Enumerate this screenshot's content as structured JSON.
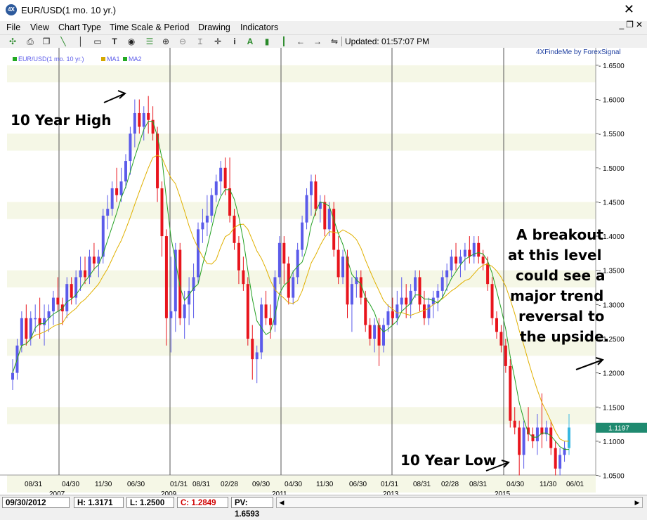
{
  "window": {
    "title": "EUR/USD(1 mo.  10 yr.)",
    "icon": "app-logo-icon"
  },
  "menu": [
    "File",
    "View",
    "Chart Type",
    "Time Scale & Period",
    "Drawing",
    "Indicators"
  ],
  "toolbar": {
    "icons": [
      "cursor-cross-icon",
      "print-icon",
      "copy-icon",
      "line-icon",
      "hline-icon",
      "text-icon",
      "circle-target-icon",
      "zoom-in-icon",
      "zoom-out-icon",
      "fit-icon",
      "info-icon",
      "font-icon",
      "bar-chart-icon",
      "candle-icon",
      "arrow-left-icon",
      "arrow-right-icon",
      "compress-icon"
    ],
    "updated": "Updated: 01:57:07 PM"
  },
  "statusbar": {
    "date": "09/30/2012",
    "high": "H: 1.3171",
    "low": "L: 1.2500",
    "close": "C: 1.2849",
    "pv": "PV: 1.6593"
  },
  "chart_data": {
    "type": "candlestick",
    "watermark": "4XFindeMe by ForexSignal",
    "legend": [
      {
        "name": "EUR/USD(1 mo.  10 yr.)",
        "color": "#22aa22"
      },
      {
        "name": "MA1",
        "color": "#d4a800"
      },
      {
        "name": "MA2",
        "color": "#22aa22"
      }
    ],
    "ylim": [
      1.03,
      1.655
    ],
    "y_ticks": [
      "1.6500",
      "1.6000",
      "1.5500",
      "1.5000",
      "1.4500",
      "1.4000",
      "1.3500",
      "1.3000",
      "1.2500",
      "1.2000",
      "1.1500",
      "1.1000",
      "1.0500"
    ],
    "x_tick_labels": [
      "08/31",
      "04/30",
      "11/30",
      "06/30",
      "01/31",
      "08/31",
      "02/28",
      "09/30",
      "04/30",
      "11/30",
      "06/30",
      "01/31",
      "08/31",
      "02/28",
      "08/31",
      "04/30",
      "11/30",
      "06/01"
    ],
    "year_labels": [
      "2007",
      "2009",
      "2011",
      "2013",
      "2015"
    ],
    "current_price": "1.1197",
    "colors": {
      "up": "#5b5bea",
      "down": "#e8141c",
      "ma1": "#e0b000",
      "ma2": "#22a022",
      "current": "#1f8a70",
      "band": "#f5f7e6"
    },
    "annotations": {
      "high": "10 Year High",
      "low": "10 Year Low",
      "note": [
        "A breakout",
        "at this  level",
        "could see a",
        "major trend",
        "reversal to",
        "the upside."
      ]
    },
    "candles": [
      [
        1.19,
        1.22,
        1.175,
        1.2
      ],
      [
        1.2,
        1.25,
        1.19,
        1.24
      ],
      [
        1.24,
        1.29,
        1.23,
        1.28
      ],
      [
        1.28,
        1.3,
        1.24,
        1.25
      ],
      [
        1.25,
        1.29,
        1.24,
        1.28
      ],
      [
        1.28,
        1.3,
        1.26,
        1.28
      ],
      [
        1.28,
        1.31,
        1.25,
        1.27
      ],
      [
        1.27,
        1.3,
        1.24,
        1.28
      ],
      [
        1.28,
        1.3,
        1.26,
        1.29
      ],
      [
        1.29,
        1.32,
        1.27,
        1.31
      ],
      [
        1.31,
        1.34,
        1.29,
        1.3
      ],
      [
        1.3,
        1.31,
        1.27,
        1.29
      ],
      [
        1.29,
        1.34,
        1.28,
        1.33
      ],
      [
        1.33,
        1.34,
        1.3,
        1.31
      ],
      [
        1.31,
        1.35,
        1.3,
        1.34
      ],
      [
        1.34,
        1.37,
        1.32,
        1.35
      ],
      [
        1.35,
        1.37,
        1.33,
        1.34
      ],
      [
        1.34,
        1.38,
        1.33,
        1.37
      ],
      [
        1.37,
        1.39,
        1.35,
        1.36
      ],
      [
        1.36,
        1.38,
        1.34,
        1.37
      ],
      [
        1.37,
        1.44,
        1.36,
        1.43
      ],
      [
        1.43,
        1.46,
        1.41,
        1.44
      ],
      [
        1.44,
        1.48,
        1.43,
        1.47
      ],
      [
        1.47,
        1.5,
        1.45,
        1.46
      ],
      [
        1.46,
        1.5,
        1.45,
        1.48
      ],
      [
        1.48,
        1.52,
        1.47,
        1.51
      ],
      [
        1.51,
        1.56,
        1.49,
        1.55
      ],
      [
        1.55,
        1.6,
        1.53,
        1.58
      ],
      [
        1.58,
        1.6,
        1.55,
        1.56
      ],
      [
        1.56,
        1.59,
        1.54,
        1.58
      ],
      [
        1.58,
        1.605,
        1.55,
        1.57
      ],
      [
        1.57,
        1.59,
        1.54,
        1.55
      ],
      [
        1.55,
        1.56,
        1.45,
        1.47
      ],
      [
        1.47,
        1.48,
        1.37,
        1.4
      ],
      [
        1.4,
        1.41,
        1.24,
        1.28
      ],
      [
        1.28,
        1.37,
        1.23,
        1.29
      ],
      [
        1.29,
        1.39,
        1.26,
        1.38
      ],
      [
        1.38,
        1.39,
        1.27,
        1.28
      ],
      [
        1.28,
        1.32,
        1.25,
        1.3
      ],
      [
        1.3,
        1.34,
        1.27,
        1.32
      ],
      [
        1.32,
        1.36,
        1.28,
        1.34
      ],
      [
        1.34,
        1.42,
        1.33,
        1.41
      ],
      [
        1.41,
        1.44,
        1.39,
        1.42
      ],
      [
        1.42,
        1.46,
        1.4,
        1.43
      ],
      [
        1.43,
        1.47,
        1.42,
        1.46
      ],
      [
        1.46,
        1.49,
        1.45,
        1.48
      ],
      [
        1.48,
        1.51,
        1.46,
        1.5
      ],
      [
        1.5,
        1.515,
        1.46,
        1.47
      ],
      [
        1.47,
        1.515,
        1.42,
        1.43
      ],
      [
        1.43,
        1.44,
        1.38,
        1.39
      ],
      [
        1.39,
        1.4,
        1.33,
        1.35
      ],
      [
        1.35,
        1.37,
        1.32,
        1.33
      ],
      [
        1.33,
        1.34,
        1.24,
        1.25
      ],
      [
        1.25,
        1.27,
        1.19,
        1.22
      ],
      [
        1.22,
        1.24,
        1.185,
        1.23
      ],
      [
        1.23,
        1.31,
        1.22,
        1.3
      ],
      [
        1.3,
        1.32,
        1.27,
        1.28
      ],
      [
        1.28,
        1.3,
        1.25,
        1.27
      ],
      [
        1.27,
        1.35,
        1.26,
        1.34
      ],
      [
        1.34,
        1.4,
        1.33,
        1.39
      ],
      [
        1.39,
        1.4,
        1.33,
        1.36
      ],
      [
        1.36,
        1.37,
        1.3,
        1.31
      ],
      [
        1.31,
        1.35,
        1.3,
        1.34
      ],
      [
        1.34,
        1.39,
        1.33,
        1.38
      ],
      [
        1.38,
        1.43,
        1.37,
        1.42
      ],
      [
        1.42,
        1.47,
        1.41,
        1.46
      ],
      [
        1.46,
        1.49,
        1.43,
        1.48
      ],
      [
        1.48,
        1.49,
        1.43,
        1.44
      ],
      [
        1.44,
        1.46,
        1.42,
        1.45
      ],
      [
        1.45,
        1.46,
        1.4,
        1.41
      ],
      [
        1.41,
        1.45,
        1.4,
        1.44
      ],
      [
        1.44,
        1.45,
        1.37,
        1.38
      ],
      [
        1.38,
        1.4,
        1.33,
        1.34
      ],
      [
        1.34,
        1.38,
        1.33,
        1.37
      ],
      [
        1.37,
        1.38,
        1.28,
        1.3
      ],
      [
        1.3,
        1.34,
        1.26,
        1.33
      ],
      [
        1.33,
        1.35,
        1.31,
        1.34
      ],
      [
        1.34,
        1.35,
        1.3,
        1.31
      ],
      [
        1.31,
        1.32,
        1.26,
        1.27
      ],
      [
        1.27,
        1.28,
        1.24,
        1.25
      ],
      [
        1.25,
        1.28,
        1.23,
        1.27
      ],
      [
        1.27,
        1.28,
        1.21,
        1.24
      ],
      [
        1.24,
        1.28,
        1.23,
        1.27
      ],
      [
        1.27,
        1.3,
        1.26,
        1.29
      ],
      [
        1.29,
        1.31,
        1.27,
        1.28
      ],
      [
        1.28,
        1.32,
        1.27,
        1.3
      ],
      [
        1.3,
        1.34,
        1.29,
        1.31
      ],
      [
        1.31,
        1.33,
        1.28,
        1.3
      ],
      [
        1.3,
        1.33,
        1.28,
        1.32
      ],
      [
        1.32,
        1.35,
        1.31,
        1.34
      ],
      [
        1.34,
        1.35,
        1.29,
        1.3
      ],
      [
        1.3,
        1.32,
        1.27,
        1.28
      ],
      [
        1.28,
        1.31,
        1.27,
        1.3
      ],
      [
        1.3,
        1.32,
        1.28,
        1.31
      ],
      [
        1.31,
        1.33,
        1.29,
        1.32
      ],
      [
        1.32,
        1.35,
        1.31,
        1.34
      ],
      [
        1.34,
        1.36,
        1.32,
        1.35
      ],
      [
        1.35,
        1.38,
        1.34,
        1.37
      ],
      [
        1.37,
        1.39,
        1.35,
        1.36
      ],
      [
        1.36,
        1.38,
        1.34,
        1.37
      ],
      [
        1.37,
        1.39,
        1.35,
        1.38
      ],
      [
        1.38,
        1.4,
        1.36,
        1.37
      ],
      [
        1.37,
        1.4,
        1.36,
        1.39
      ],
      [
        1.39,
        1.4,
        1.36,
        1.37
      ],
      [
        1.37,
        1.38,
        1.35,
        1.36
      ],
      [
        1.36,
        1.37,
        1.32,
        1.33
      ],
      [
        1.33,
        1.34,
        1.27,
        1.28
      ],
      [
        1.28,
        1.29,
        1.25,
        1.26
      ],
      [
        1.26,
        1.27,
        1.23,
        1.24
      ],
      [
        1.24,
        1.25,
        1.2,
        1.21
      ],
      [
        1.21,
        1.22,
        1.12,
        1.13
      ],
      [
        1.13,
        1.15,
        1.11,
        1.12
      ],
      [
        1.12,
        1.13,
        1.05,
        1.08
      ],
      [
        1.08,
        1.13,
        1.06,
        1.12
      ],
      [
        1.12,
        1.15,
        1.1,
        1.11
      ],
      [
        1.11,
        1.12,
        1.09,
        1.1
      ],
      [
        1.1,
        1.14,
        1.08,
        1.12
      ],
      [
        1.12,
        1.17,
        1.09,
        1.11
      ],
      [
        1.11,
        1.13,
        1.1,
        1.12
      ],
      [
        1.12,
        1.13,
        1.08,
        1.09
      ],
      [
        1.09,
        1.1,
        1.05,
        1.06
      ],
      [
        1.06,
        1.09,
        1.05,
        1.08
      ],
      [
        1.08,
        1.1,
        1.07,
        1.09
      ],
      [
        1.09,
        1.14,
        1.08,
        1.12
      ]
    ]
  }
}
